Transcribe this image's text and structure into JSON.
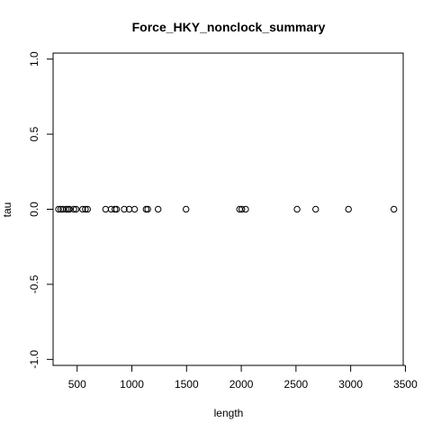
{
  "chart_data": {
    "type": "scatter",
    "title": "Force_HKY_nonclock_summary",
    "xlabel": "length",
    "ylabel": "tau",
    "xlim": [
      280,
      3480
    ],
    "ylim": [
      -1.04,
      1.04
    ],
    "x_ticks": [
      500,
      1000,
      1500,
      2000,
      2500,
      3000,
      3500
    ],
    "x_tick_labels": [
      "500",
      "1000",
      "1500",
      "2000",
      "2500",
      "3000",
      "3500"
    ],
    "y_ticks": [
      1.0,
      0.5,
      0.0,
      -0.5,
      -1.0
    ],
    "y_tick_labels": [
      "1.0",
      "0.5",
      "0.0",
      "-0.5",
      "-1.0"
    ],
    "grid": false,
    "marker": "open-circle",
    "series": [
      {
        "points": [
          {
            "x": 330,
            "y": 0
          },
          {
            "x": 350,
            "y": 0
          },
          {
            "x": 370,
            "y": 0
          },
          {
            "x": 400,
            "y": 0
          },
          {
            "x": 415,
            "y": 0
          },
          {
            "x": 430,
            "y": 0
          },
          {
            "x": 470,
            "y": 0
          },
          {
            "x": 490,
            "y": 0
          },
          {
            "x": 550,
            "y": 0
          },
          {
            "x": 575,
            "y": 0
          },
          {
            "x": 595,
            "y": 0
          },
          {
            "x": 760,
            "y": 0
          },
          {
            "x": 810,
            "y": 0
          },
          {
            "x": 845,
            "y": 0
          },
          {
            "x": 860,
            "y": 0
          },
          {
            "x": 930,
            "y": 0
          },
          {
            "x": 975,
            "y": 0
          },
          {
            "x": 1025,
            "y": 0
          },
          {
            "x": 1130,
            "y": 0
          },
          {
            "x": 1145,
            "y": 0
          },
          {
            "x": 1240,
            "y": 0
          },
          {
            "x": 1495,
            "y": 0
          },
          {
            "x": 1985,
            "y": 0
          },
          {
            "x": 2005,
            "y": 0
          },
          {
            "x": 2040,
            "y": 0
          },
          {
            "x": 2510,
            "y": 0
          },
          {
            "x": 2680,
            "y": 0
          },
          {
            "x": 2980,
            "y": 0
          },
          {
            "x": 3395,
            "y": 0
          }
        ]
      }
    ]
  }
}
